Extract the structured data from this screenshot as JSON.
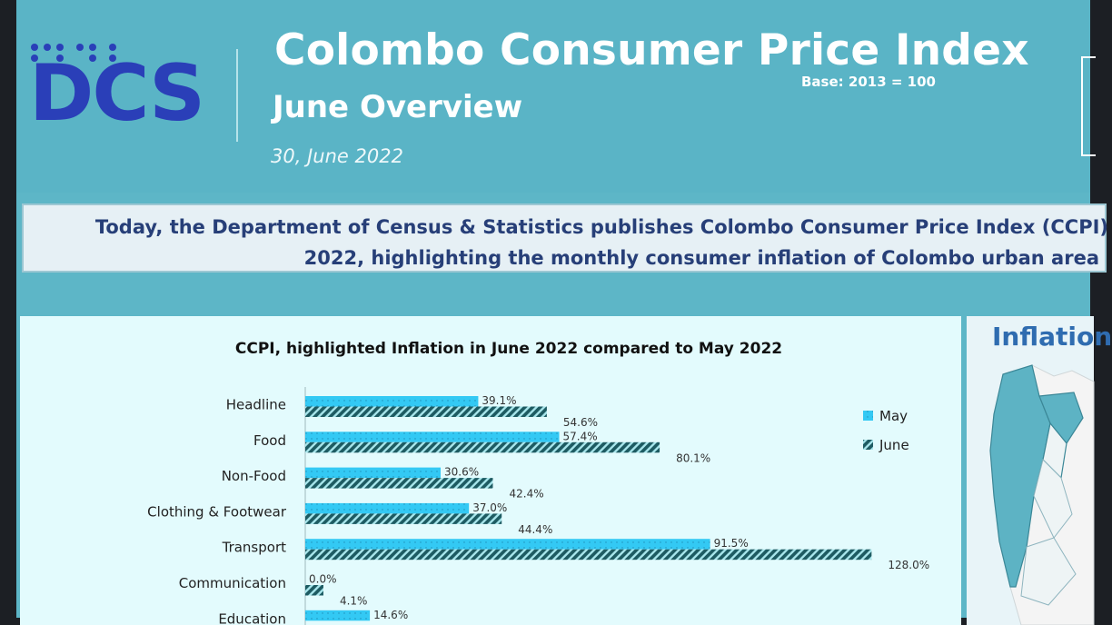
{
  "header": {
    "logo_text": "DCS",
    "title": "Colombo Consumer Price Index",
    "base_note": "Base: 2013 = 100",
    "subtitle": "June Overview",
    "date": "30, June 2022"
  },
  "intro": {
    "line1": "Today, the Department of Census & Statistics publishes Colombo Consumer Price Index (CCPI)",
    "line2": "2022, highlighting the monthly consumer inflation of Colombo urban area"
  },
  "map_panel": {
    "title": "Inflation"
  },
  "colors": {
    "may": "#33c9f4",
    "june": "#1d5b62",
    "header_bg": "#5ab4c6",
    "logo": "#2a3fb8",
    "intro_text": "#273f78"
  },
  "chart_data": {
    "type": "bar",
    "orientation": "horizontal",
    "title": "CCPI, highlighted Inflation in June 2022 compared to May 2022",
    "categories": [
      "Headline",
      "Food",
      "Non-Food",
      "Clothing & Footwear",
      "Transport",
      "Communication",
      "Education"
    ],
    "series": [
      {
        "name": "May",
        "values": [
          39.1,
          57.4,
          30.6,
          37.0,
          91.5,
          0.0,
          14.6
        ],
        "labels": [
          "39.1%",
          "57.4%",
          "30.6%",
          "37.0%",
          "91.5%",
          "0.0%",
          "14.6%"
        ]
      },
      {
        "name": "June",
        "values": [
          54.6,
          80.1,
          42.4,
          44.4,
          128.0,
          4.1,
          null
        ],
        "labels": [
          "54.6%",
          "80.1%",
          "42.4%",
          "44.4%",
          "128.0%",
          "4.1%",
          ""
        ]
      }
    ],
    "xlim": [
      0,
      130
    ],
    "legend": "right",
    "grid": false,
    "value_unit": "%"
  }
}
